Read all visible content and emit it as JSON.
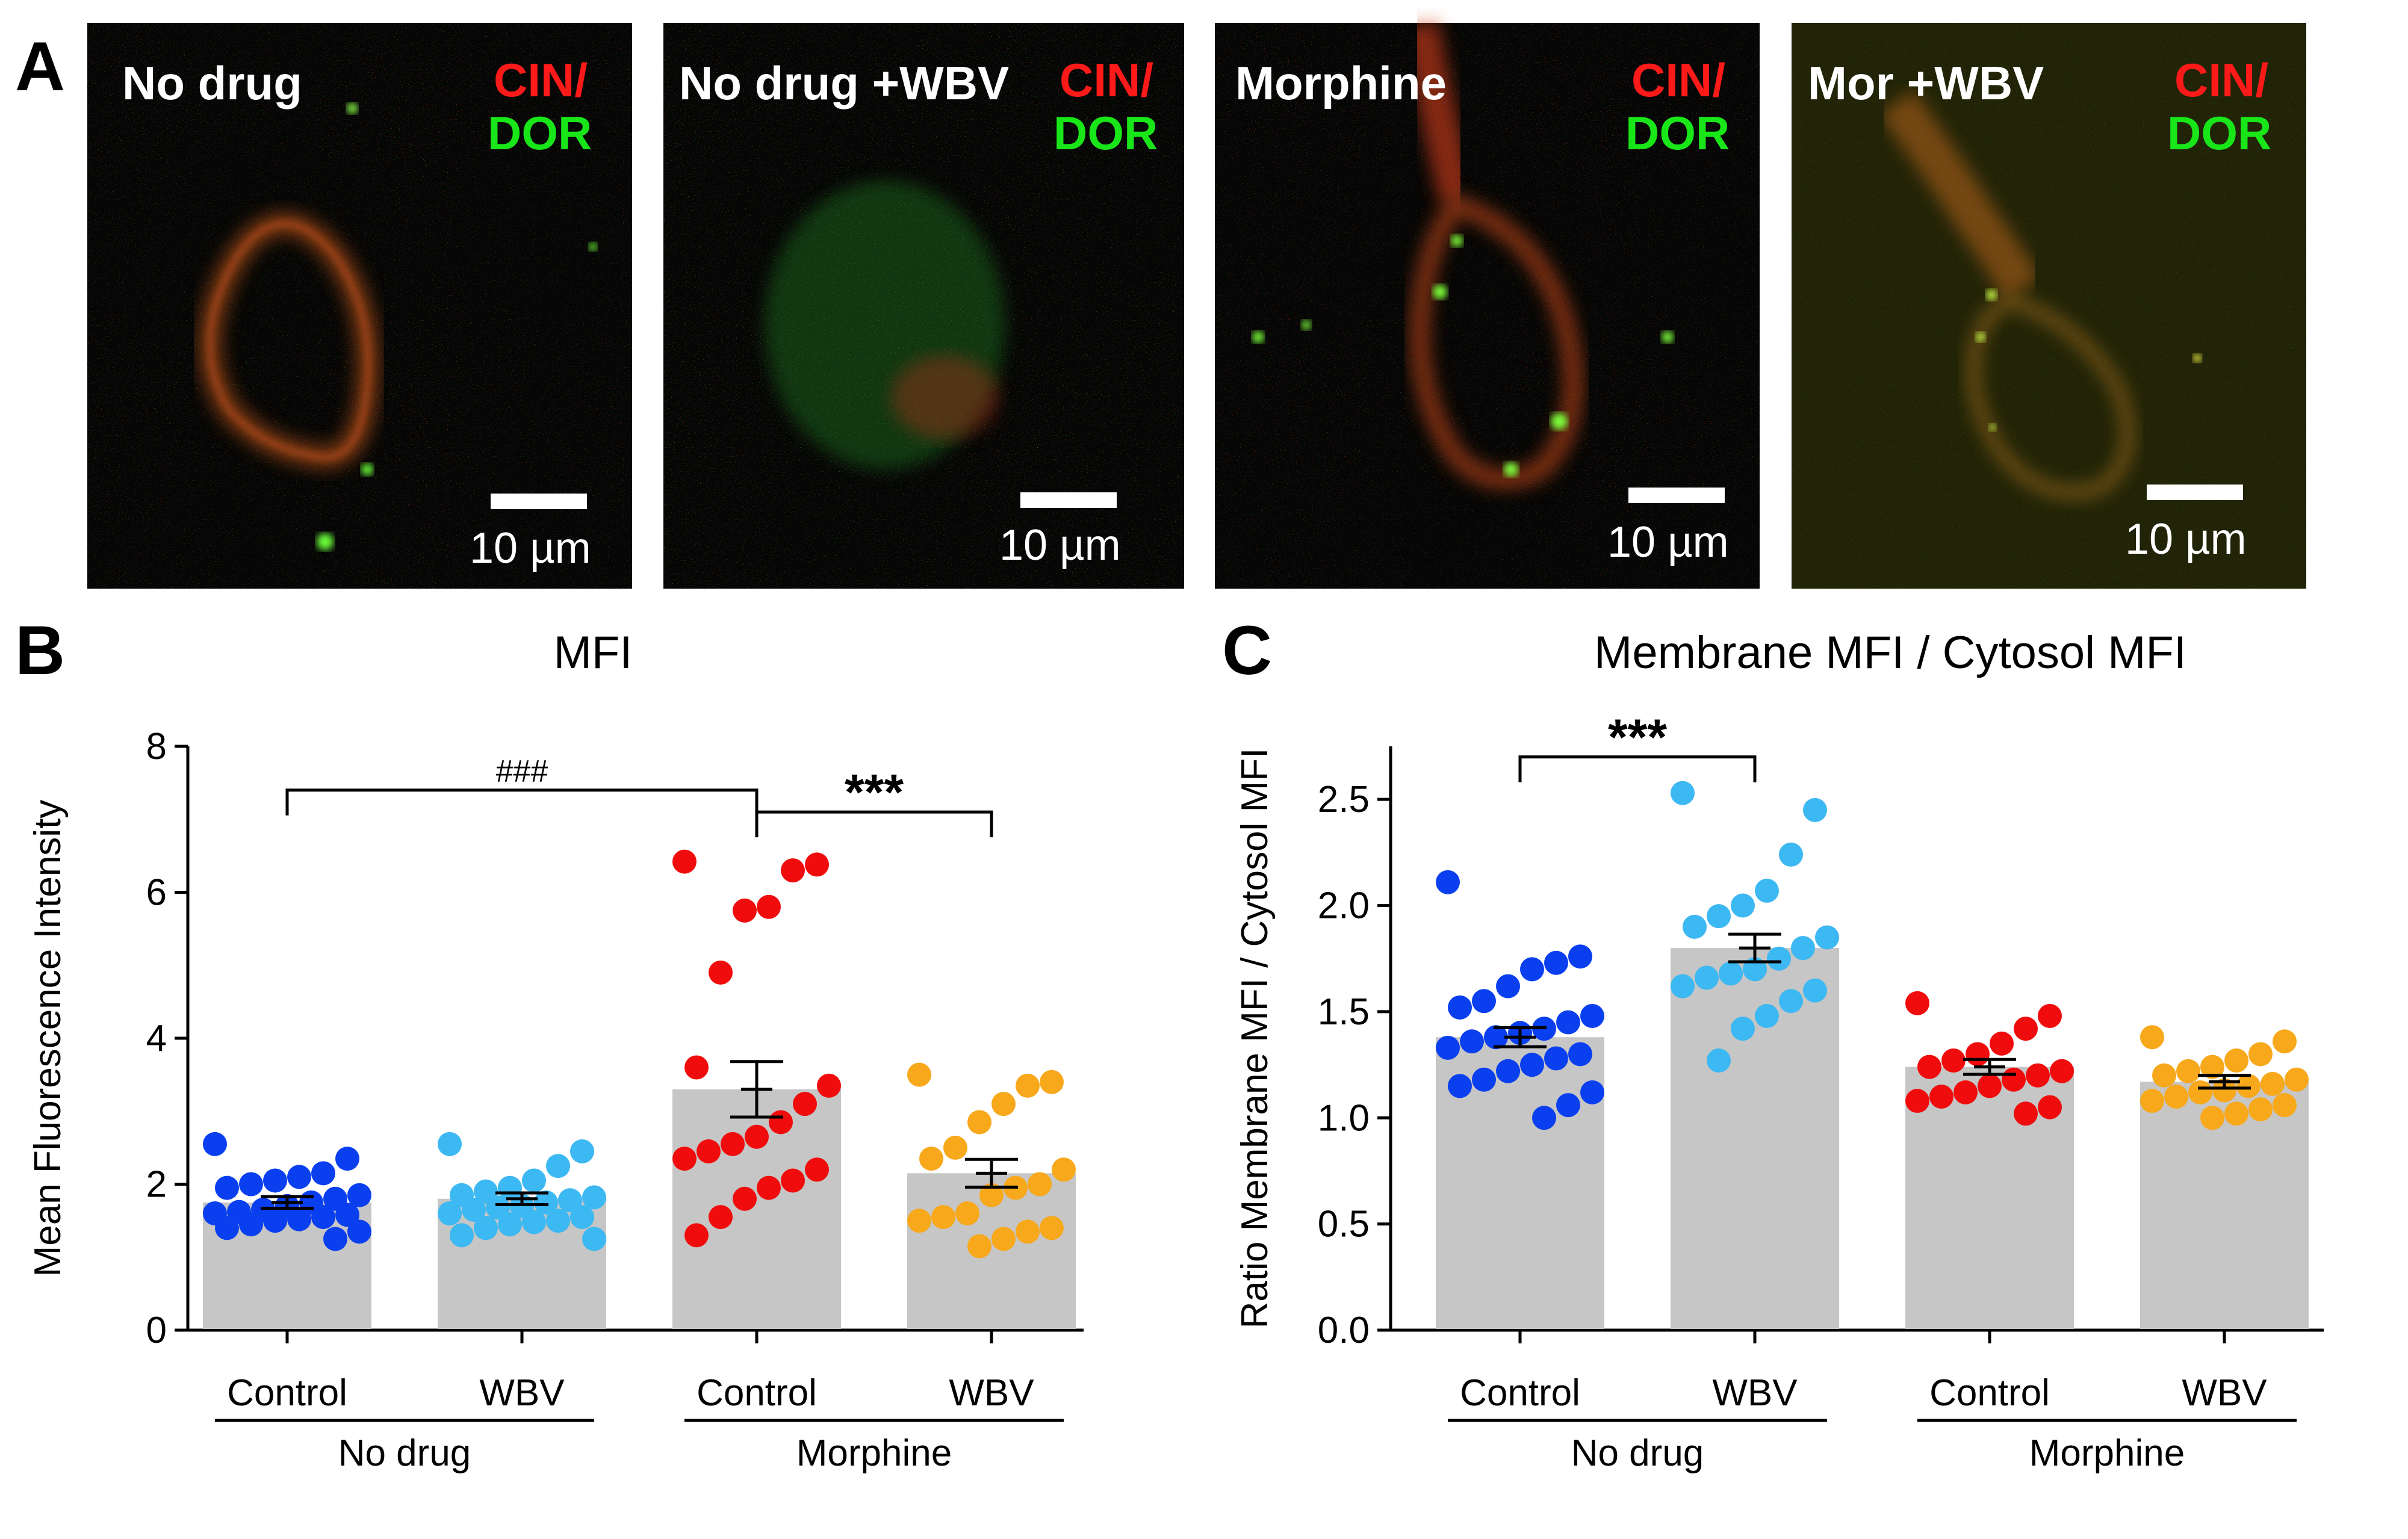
{
  "panel_labels": {
    "a": "A",
    "b": "B",
    "c": "C"
  },
  "micrographs": [
    {
      "title": "No drug",
      "stain_top": "CIN/",
      "stain_bottom": "DOR",
      "scale": "10 µm"
    },
    {
      "title": "No drug +WBV",
      "stain_top": "CIN/",
      "stain_bottom": "DOR",
      "scale": "10 µm"
    },
    {
      "title": "Morphine",
      "stain_top": "CIN/",
      "stain_bottom": "DOR",
      "scale": "10 µm"
    },
    {
      "title": "Mor +WBV",
      "stain_top": "CIN/",
      "stain_bottom": "DOR",
      "scale": "10 µm"
    }
  ],
  "colors": {
    "no_drug_control": "#0a3ff0",
    "no_drug_wbv": "#3cb8f2",
    "morphine_control": "#f00c0c",
    "morphine_wbv": "#f7a81b",
    "bar_fill": "#c6c6c6",
    "stain_red": "#ff1a1a",
    "stain_green": "#19e619"
  },
  "chart_data": [
    {
      "type": "bar",
      "title": "MFI",
      "xlabel": "",
      "ylabel": "Mean Fluorescence Intensity",
      "ylim": [
        0,
        8
      ],
      "yticks": [
        0,
        2,
        4,
        6,
        8
      ],
      "categories": [
        "Control",
        "WBV",
        "Control",
        "WBV"
      ],
      "groups": [
        {
          "label": "No drug",
          "categories": [
            0,
            1
          ]
        },
        {
          "label": "Morphine",
          "categories": [
            2,
            3
          ]
        }
      ],
      "values": [
        1.75,
        1.8,
        3.3,
        2.15
      ],
      "sem": [
        0.08,
        0.08,
        0.38,
        0.19
      ],
      "series": [
        {
          "name": "No drug Control",
          "color": "#0a3ff0",
          "points": [
            2.55,
            2.35,
            2.15,
            2.1,
            2.05,
            2.0,
            1.95,
            1.85,
            1.8,
            1.75,
            1.7,
            1.65,
            1.62,
            1.6,
            1.58,
            1.55,
            1.52,
            1.5,
            1.45,
            1.4,
            1.35,
            1.25
          ]
        },
        {
          "name": "No drug WBV",
          "color": "#3cb8f2",
          "points": [
            2.55,
            2.45,
            2.25,
            2.05,
            1.95,
            1.9,
            1.85,
            1.82,
            1.78,
            1.75,
            1.7,
            1.68,
            1.65,
            1.6,
            1.55,
            1.5,
            1.48,
            1.45,
            1.4,
            1.3,
            1.25
          ]
        },
        {
          "name": "Morphine Control",
          "color": "#f00c0c",
          "points": [
            6.42,
            6.38,
            6.3,
            5.8,
            5.75,
            4.9,
            3.6,
            3.35,
            3.1,
            2.85,
            2.65,
            2.55,
            2.45,
            2.35,
            2.2,
            2.05,
            1.95,
            1.8,
            1.55,
            1.3
          ]
        },
        {
          "name": "Morphine WBV",
          "color": "#f7a81b",
          "points": [
            3.5,
            3.4,
            3.35,
            3.1,
            2.85,
            2.5,
            2.35,
            2.2,
            2.0,
            1.95,
            1.85,
            1.6,
            1.55,
            1.5,
            1.4,
            1.35,
            1.25,
            1.15
          ]
        }
      ],
      "significance": [
        {
          "from": 0,
          "to": 2,
          "label": "###",
          "y": 7.4
        },
        {
          "from": 2,
          "to": 3,
          "label": "***",
          "y": 7.1
        }
      ]
    },
    {
      "type": "bar",
      "title": "Membrane MFI / Cytosol MFI",
      "xlabel": "",
      "ylabel": "Ratio Membrane MFI / Cytosol MFI",
      "ylim": [
        0,
        2.75
      ],
      "yticks": [
        0.0,
        0.5,
        1.0,
        1.5,
        2.0,
        2.5
      ],
      "ytick_labels": [
        "0.0",
        "0.5",
        "1.0",
        "1.5",
        "2.0",
        "2.5"
      ],
      "categories": [
        "Control",
        "WBV",
        "Control",
        "WBV"
      ],
      "groups": [
        {
          "label": "No drug",
          "categories": [
            0,
            1
          ]
        },
        {
          "label": "Morphine",
          "categories": [
            2,
            3
          ]
        }
      ],
      "values": [
        1.38,
        1.8,
        1.24,
        1.17
      ],
      "sem": [
        0.045,
        0.065,
        0.035,
        0.03
      ],
      "series": [
        {
          "name": "No drug Control",
          "color": "#0a3ff0",
          "points": [
            2.11,
            1.76,
            1.73,
            1.7,
            1.62,
            1.55,
            1.52,
            1.48,
            1.45,
            1.42,
            1.4,
            1.38,
            1.36,
            1.33,
            1.3,
            1.28,
            1.25,
            1.22,
            1.18,
            1.15,
            1.12,
            1.06,
            1.0
          ]
        },
        {
          "name": "No drug WBV",
          "color": "#3cb8f2",
          "points": [
            2.53,
            2.45,
            2.24,
            2.07,
            2.0,
            1.95,
            1.9,
            1.85,
            1.8,
            1.75,
            1.7,
            1.68,
            1.66,
            1.62,
            1.6,
            1.55,
            1.48,
            1.42,
            1.27
          ]
        },
        {
          "name": "Morphine Control",
          "color": "#f00c0c",
          "points": [
            1.54,
            1.48,
            1.42,
            1.35,
            1.3,
            1.27,
            1.24,
            1.22,
            1.2,
            1.18,
            1.15,
            1.12,
            1.1,
            1.08,
            1.05,
            1.02
          ]
        },
        {
          "name": "Morphine WBV",
          "color": "#f7a81b",
          "points": [
            1.38,
            1.36,
            1.3,
            1.27,
            1.24,
            1.22,
            1.2,
            1.18,
            1.16,
            1.15,
            1.13,
            1.12,
            1.1,
            1.08,
            1.06,
            1.04,
            1.02,
            1.0
          ]
        }
      ],
      "significance": [
        {
          "from": 0,
          "to": 1,
          "label": "***",
          "y": 2.7
        }
      ]
    }
  ]
}
